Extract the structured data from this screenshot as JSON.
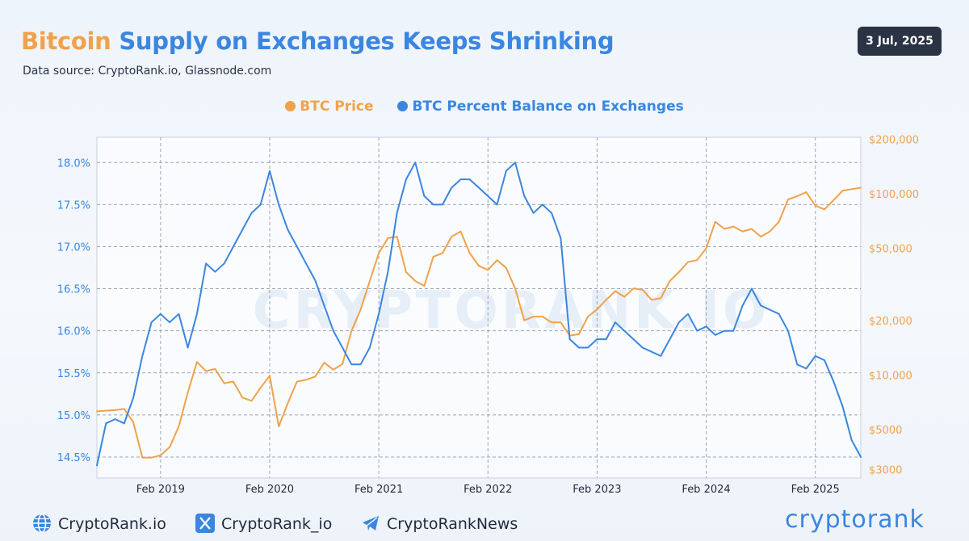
{
  "header": {
    "title_part1": "Bitcoin",
    "title_part2": "Supply on Exchanges Keeps Shrinking",
    "subtitle": "Data source: CryptoRank.io, Glassnode.com",
    "date": "3 Jul, 2025"
  },
  "legend": [
    {
      "label": "BTC Price",
      "color": "#f0a24a"
    },
    {
      "label": "BTC Percent Balance on Exchanges",
      "color": "#3a86e0"
    }
  ],
  "watermark": "CRYPTORANK.IO",
  "chart_data": {
    "type": "line",
    "x_range": [
      "2018-07",
      "2025-07"
    ],
    "x_ticks": [
      "Feb 2019",
      "Feb 2020",
      "Feb 2021",
      "Feb 2022",
      "Feb 2023",
      "Feb 2024",
      "Feb 2025"
    ],
    "left_axis": {
      "ticks": [
        "18.0%",
        "17.5%",
        "17.0%",
        "16.5%",
        "16.0%",
        "15.5%",
        "15.0%",
        "14.5%"
      ],
      "range": [
        14.25,
        18.3
      ]
    },
    "right_axis": {
      "scale": "log",
      "ticks": [
        "$200,000",
        "$100,000",
        "$50,000",
        "$20,000",
        "$10,000",
        "$5000",
        "$3000"
      ],
      "range": [
        2700,
        205000
      ]
    },
    "grid": true,
    "legend_position": "top-center",
    "series": [
      {
        "name": "BTC Price",
        "color": "#f0a24a",
        "axis": "right",
        "points": [
          [
            "2018-07",
            6300
          ],
          [
            "2018-09",
            6400
          ],
          [
            "2018-10",
            6500
          ],
          [
            "2018-11",
            5500
          ],
          [
            "2018-12",
            3500
          ],
          [
            "2019-01",
            3500
          ],
          [
            "2019-02",
            3600
          ],
          [
            "2019-03",
            4000
          ],
          [
            "2019-04",
            5200
          ],
          [
            "2019-05",
            8000
          ],
          [
            "2019-06",
            11800
          ],
          [
            "2019-07",
            10500
          ],
          [
            "2019-08",
            10800
          ],
          [
            "2019-09",
            9000
          ],
          [
            "2019-10",
            9200
          ],
          [
            "2019-11",
            7500
          ],
          [
            "2019-12",
            7200
          ],
          [
            "2020-01",
            8500
          ],
          [
            "2020-02",
            9900
          ],
          [
            "2020-03",
            5200
          ],
          [
            "2020-04",
            7000
          ],
          [
            "2020-05",
            9200
          ],
          [
            "2020-06",
            9400
          ],
          [
            "2020-07",
            9800
          ],
          [
            "2020-08",
            11700
          ],
          [
            "2020-09",
            10700
          ],
          [
            "2020-10",
            11500
          ],
          [
            "2020-11",
            17500
          ],
          [
            "2020-12",
            23000
          ],
          [
            "2021-01",
            33000
          ],
          [
            "2021-02",
            47000
          ],
          [
            "2021-03",
            57000
          ],
          [
            "2021-04",
            58000
          ],
          [
            "2021-05",
            37000
          ],
          [
            "2021-06",
            33000
          ],
          [
            "2021-07",
            31000
          ],
          [
            "2021-08",
            45000
          ],
          [
            "2021-09",
            47000
          ],
          [
            "2021-10",
            58000
          ],
          [
            "2021-11",
            62000
          ],
          [
            "2021-12",
            47000
          ],
          [
            "2022-01",
            40000
          ],
          [
            "2022-02",
            38000
          ],
          [
            "2022-03",
            43000
          ],
          [
            "2022-04",
            39000
          ],
          [
            "2022-05",
            30000
          ],
          [
            "2022-06",
            20000
          ],
          [
            "2022-07",
            21000
          ],
          [
            "2022-08",
            21000
          ],
          [
            "2022-09",
            19500
          ],
          [
            "2022-10",
            19500
          ],
          [
            "2022-11",
            16500
          ],
          [
            "2022-12",
            16800
          ],
          [
            "2023-01",
            21000
          ],
          [
            "2023-02",
            23000
          ],
          [
            "2023-03",
            26000
          ],
          [
            "2023-04",
            29000
          ],
          [
            "2023-05",
            27000
          ],
          [
            "2023-06",
            30000
          ],
          [
            "2023-07",
            29500
          ],
          [
            "2023-08",
            26000
          ],
          [
            "2023-09",
            26500
          ],
          [
            "2023-10",
            33000
          ],
          [
            "2023-11",
            37000
          ],
          [
            "2023-12",
            42000
          ],
          [
            "2024-01",
            43000
          ],
          [
            "2024-02",
            50000
          ],
          [
            "2024-03",
            70000
          ],
          [
            "2024-04",
            64000
          ],
          [
            "2024-05",
            66000
          ],
          [
            "2024-06",
            62000
          ],
          [
            "2024-07",
            64000
          ],
          [
            "2024-08",
            58000
          ],
          [
            "2024-09",
            62000
          ],
          [
            "2024-10",
            70000
          ],
          [
            "2024-11",
            93000
          ],
          [
            "2024-12",
            97000
          ],
          [
            "2025-01",
            102000
          ],
          [
            "2025-02",
            86000
          ],
          [
            "2025-03",
            82000
          ],
          [
            "2025-04",
            92000
          ],
          [
            "2025-05",
            104000
          ],
          [
            "2025-06",
            106000
          ],
          [
            "2025-07",
            108000
          ]
        ]
      },
      {
        "name": "BTC Percent Balance on Exchanges",
        "color": "#3a86e0",
        "axis": "left",
        "points": [
          [
            "2018-07",
            14.4
          ],
          [
            "2018-08",
            14.9
          ],
          [
            "2018-09",
            14.95
          ],
          [
            "2018-10",
            14.9
          ],
          [
            "2018-11",
            15.2
          ],
          [
            "2018-12",
            15.7
          ],
          [
            "2019-01",
            16.1
          ],
          [
            "2019-02",
            16.2
          ],
          [
            "2019-03",
            16.1
          ],
          [
            "2019-04",
            16.2
          ],
          [
            "2019-05",
            15.8
          ],
          [
            "2019-06",
            16.2
          ],
          [
            "2019-07",
            16.8
          ],
          [
            "2019-08",
            16.7
          ],
          [
            "2019-09",
            16.8
          ],
          [
            "2019-10",
            17.0
          ],
          [
            "2019-11",
            17.2
          ],
          [
            "2019-12",
            17.4
          ],
          [
            "2020-01",
            17.5
          ],
          [
            "2020-02",
            17.9
          ],
          [
            "2020-03",
            17.5
          ],
          [
            "2020-04",
            17.2
          ],
          [
            "2020-05",
            17.0
          ],
          [
            "2020-06",
            16.8
          ],
          [
            "2020-07",
            16.6
          ],
          [
            "2020-08",
            16.3
          ],
          [
            "2020-09",
            16.0
          ],
          [
            "2020-10",
            15.8
          ],
          [
            "2020-11",
            15.6
          ],
          [
            "2020-12",
            15.6
          ],
          [
            "2021-01",
            15.8
          ],
          [
            "2021-02",
            16.2
          ],
          [
            "2021-03",
            16.7
          ],
          [
            "2021-04",
            17.4
          ],
          [
            "2021-05",
            17.8
          ],
          [
            "2021-06",
            18.0
          ],
          [
            "2021-07",
            17.6
          ],
          [
            "2021-08",
            17.5
          ],
          [
            "2021-09",
            17.5
          ],
          [
            "2021-10",
            17.7
          ],
          [
            "2021-11",
            17.8
          ],
          [
            "2021-12",
            17.8
          ],
          [
            "2022-01",
            17.7
          ],
          [
            "2022-02",
            17.6
          ],
          [
            "2022-03",
            17.5
          ],
          [
            "2022-04",
            17.9
          ],
          [
            "2022-05",
            18.0
          ],
          [
            "2022-06",
            17.6
          ],
          [
            "2022-07",
            17.4
          ],
          [
            "2022-08",
            17.5
          ],
          [
            "2022-09",
            17.4
          ],
          [
            "2022-10",
            17.1
          ],
          [
            "2022-11",
            15.9
          ],
          [
            "2022-12",
            15.8
          ],
          [
            "2023-01",
            15.8
          ],
          [
            "2023-02",
            15.9
          ],
          [
            "2023-03",
            15.9
          ],
          [
            "2023-04",
            16.1
          ],
          [
            "2023-05",
            16.0
          ],
          [
            "2023-06",
            15.9
          ],
          [
            "2023-07",
            15.8
          ],
          [
            "2023-08",
            15.75
          ],
          [
            "2023-09",
            15.7
          ],
          [
            "2023-10",
            15.9
          ],
          [
            "2023-11",
            16.1
          ],
          [
            "2023-12",
            16.2
          ],
          [
            "2024-01",
            16.0
          ],
          [
            "2024-02",
            16.05
          ],
          [
            "2024-03",
            15.95
          ],
          [
            "2024-04",
            16.0
          ],
          [
            "2024-05",
            16.0
          ],
          [
            "2024-06",
            16.3
          ],
          [
            "2024-07",
            16.5
          ],
          [
            "2024-08",
            16.3
          ],
          [
            "2024-09",
            16.25
          ],
          [
            "2024-10",
            16.2
          ],
          [
            "2024-11",
            16.0
          ],
          [
            "2024-12",
            15.6
          ],
          [
            "2025-01",
            15.55
          ],
          [
            "2025-02",
            15.7
          ],
          [
            "2025-03",
            15.65
          ],
          [
            "2025-04",
            15.4
          ],
          [
            "2025-05",
            15.1
          ],
          [
            "2025-06",
            14.7
          ],
          [
            "2025-07",
            14.5
          ]
        ]
      }
    ]
  },
  "footer": {
    "website": "CryptoRank.io",
    "twitter": "CryptoRank_io",
    "telegram": "CryptoRankNews",
    "brand": "cryptorank"
  }
}
